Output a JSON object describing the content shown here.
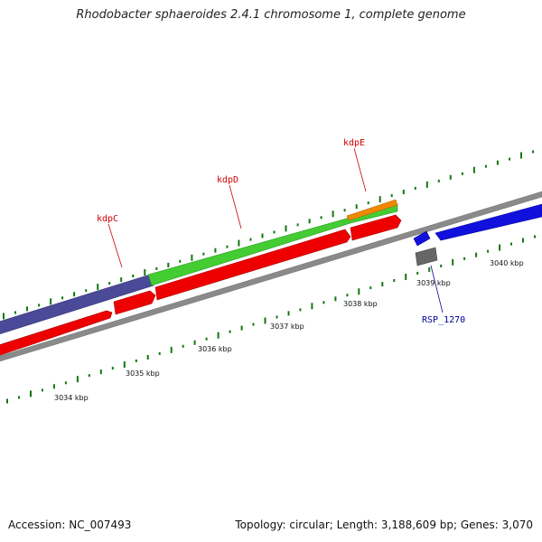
{
  "title": "Rhodobacter sphaeroides 2.4.1 chromosome 1, complete genome",
  "footer": {
    "accession": "Accession: NC_007493",
    "summary": "Topology: circular; Length: 3,188,609 bp; Genes: 3,070"
  },
  "colors": {
    "backbone": "#8a8a8a",
    "cds_red": "#ee0000",
    "gene_green": "#44cc33",
    "gene_purple": "#4a4a99",
    "gene_orange": "#ee8800",
    "cds_blue": "#1111dd",
    "grey_feature": "#666666",
    "gc_tick": "#117711",
    "label_red": "#cc0000",
    "label_blue": "#000099"
  },
  "scale": {
    "ticks": [
      {
        "label": "3034 kbp"
      },
      {
        "label": "3035 kbp"
      },
      {
        "label": "3036 kbp"
      },
      {
        "label": "3037 kbp"
      },
      {
        "label": "3038 kbp"
      },
      {
        "label": "3039 kbp"
      },
      {
        "label": "3040 kbp"
      }
    ]
  },
  "genes": [
    {
      "name": "kdpC",
      "color": "label_red"
    },
    {
      "name": "kdpD",
      "color": "label_red"
    },
    {
      "name": "kdpE",
      "color": "label_red"
    },
    {
      "name": "RSP_1270",
      "color": "label_blue"
    }
  ]
}
